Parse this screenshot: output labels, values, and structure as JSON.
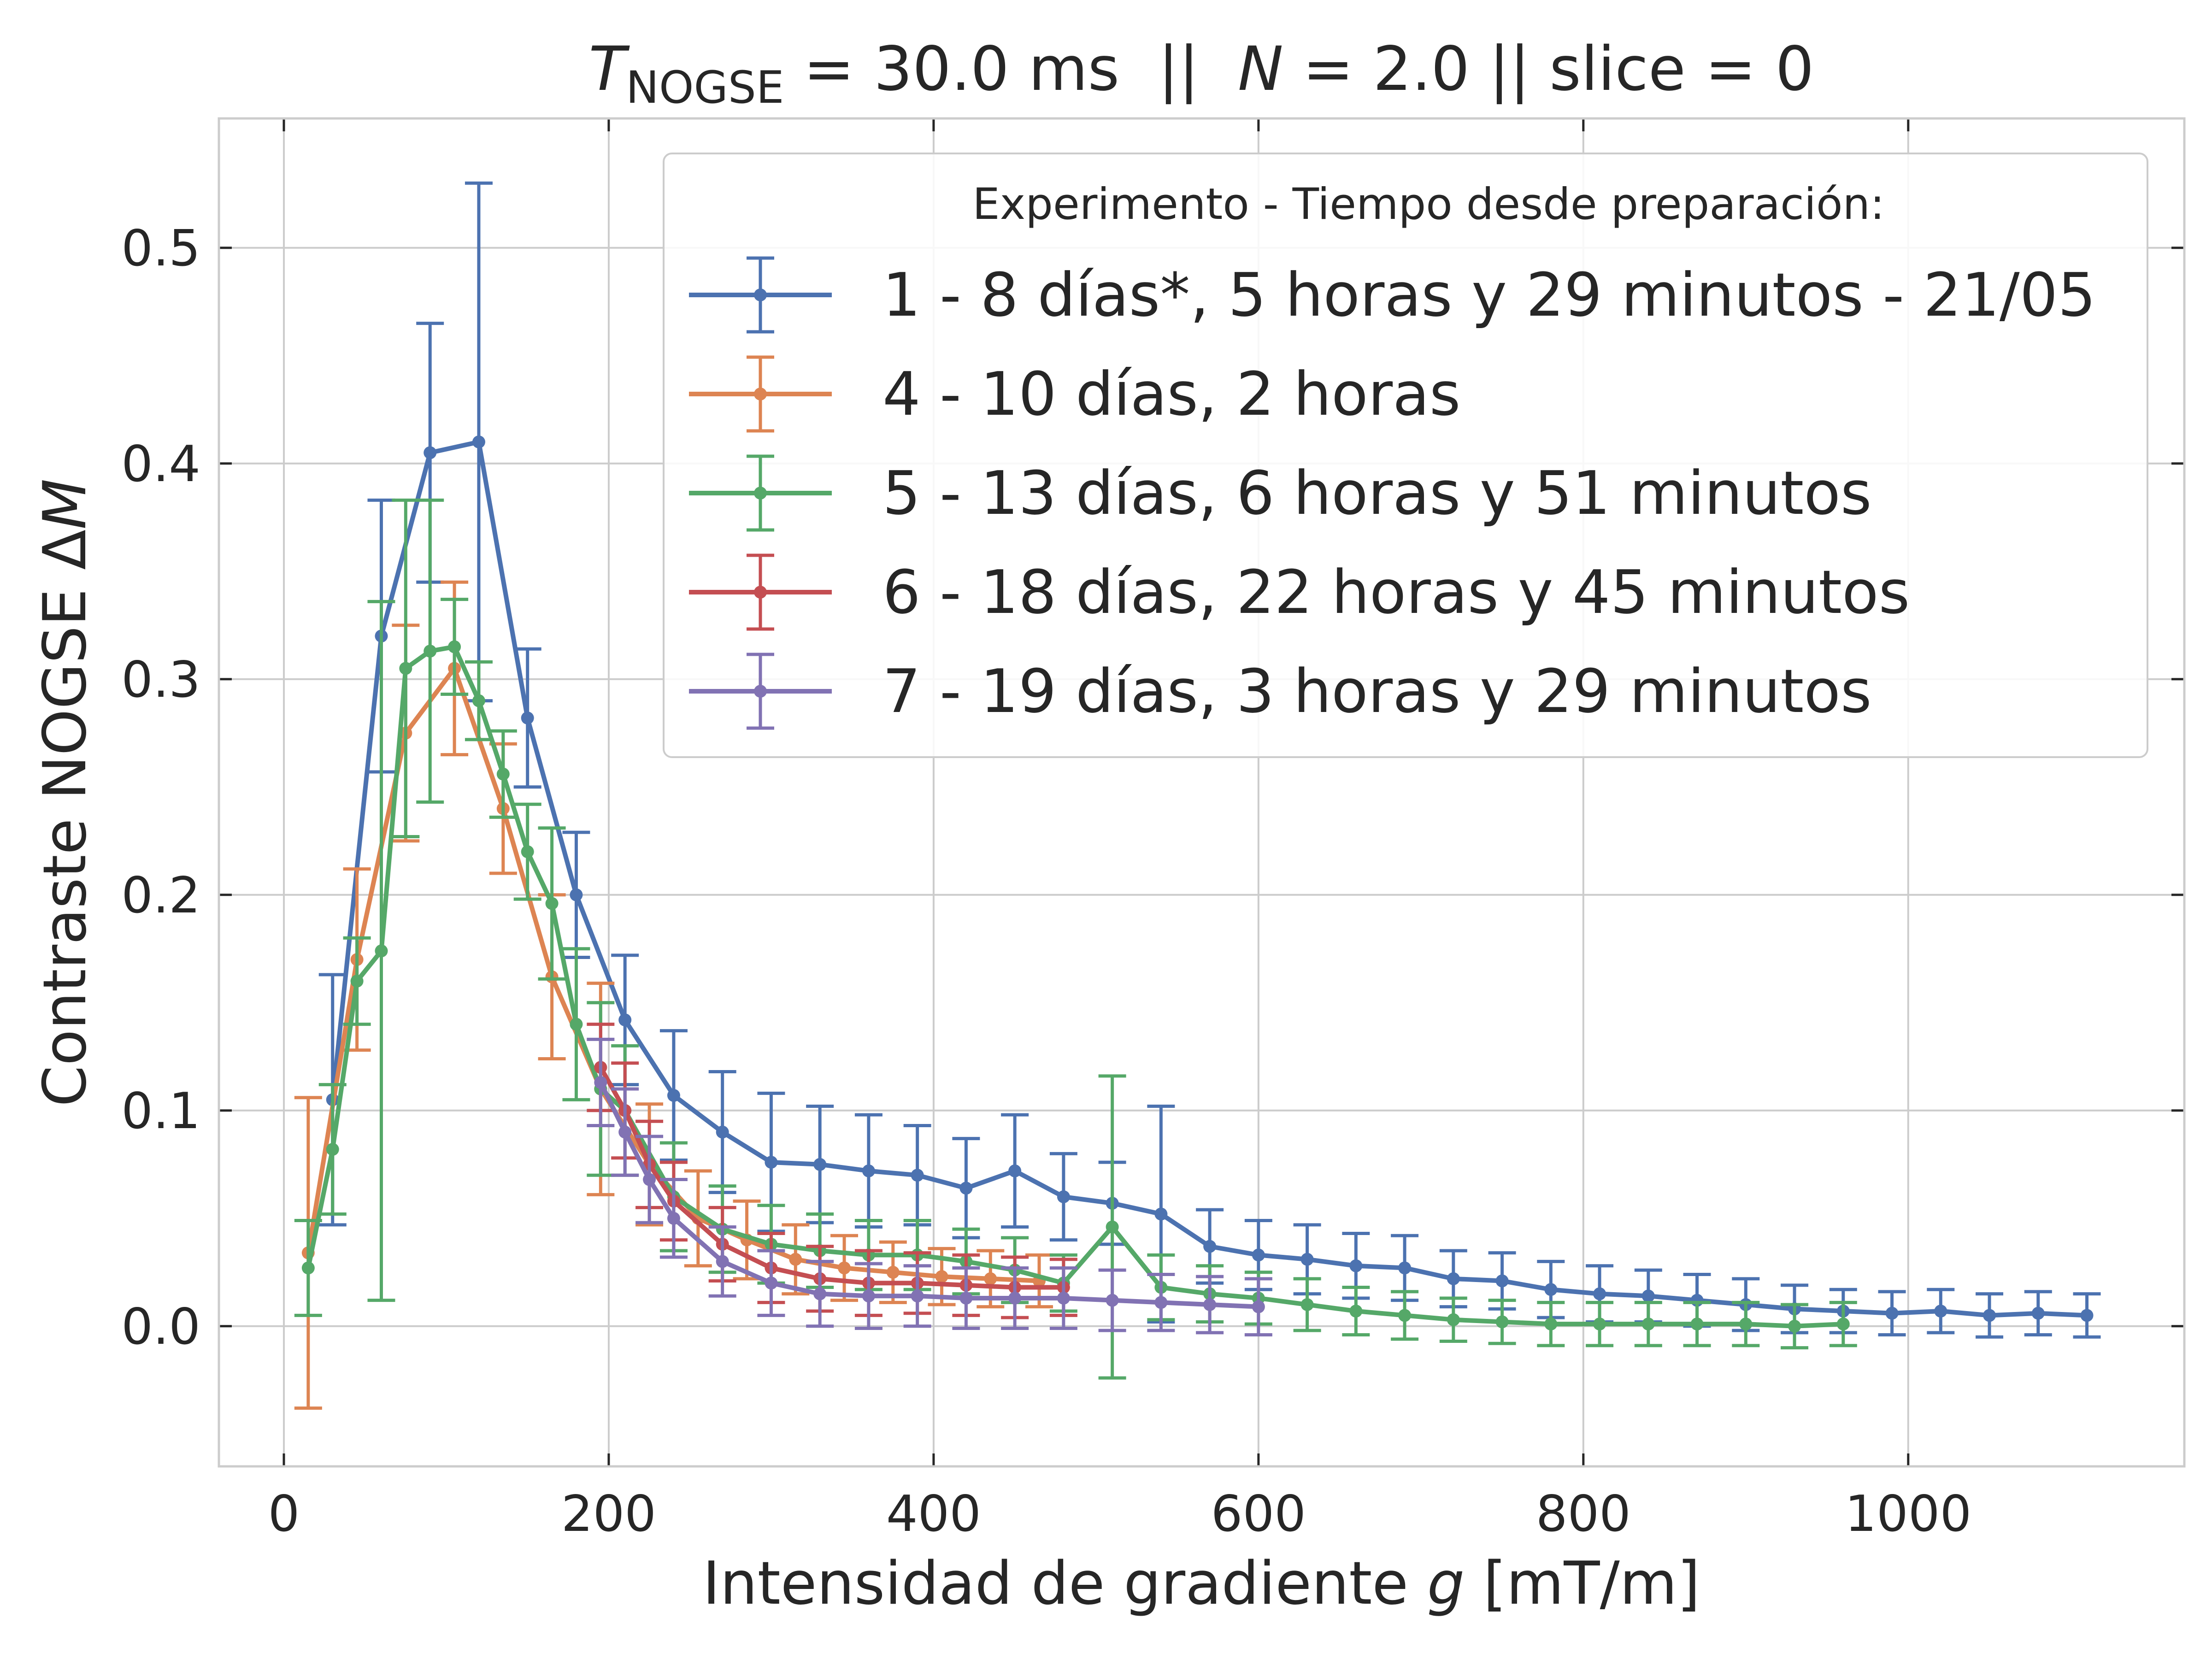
{
  "chart_data": {
    "type": "line",
    "title": {
      "prefix_symbol": "T",
      "prefix_subscript": "NOGSE",
      "rest": " = 30.0 ms  ||  ",
      "n_symbol": "N",
      "n_rest": " = 2.0 || slice = 0"
    },
    "xlabel": {
      "text": "Intensidad de gradiente ",
      "symbol": "g",
      "unit": " [mT/m]"
    },
    "ylabel": {
      "text": "Contraste NOGSE Δ",
      "symbol": "M"
    },
    "xlim": [
      -40,
      1170
    ],
    "ylim": [
      -0.065,
      0.56
    ],
    "xticks": [
      0,
      200,
      400,
      600,
      800,
      1000
    ],
    "xtick_labels": [
      "0",
      "200",
      "400",
      "600",
      "800",
      "1000"
    ],
    "yticks": [
      0.0,
      0.1,
      0.2,
      0.3,
      0.4,
      0.5
    ],
    "ytick_labels": [
      "0.0",
      "0.1",
      "0.2",
      "0.3",
      "0.4",
      "0.5"
    ],
    "grid": true,
    "legend": {
      "title": "Experimento - Tiempo desde preparación:",
      "position": "top-right"
    },
    "series": [
      {
        "name": "1 - 8 días*, 5 horas y 29 minutos - 21/05",
        "color": "#4c72b0",
        "x": [
          30,
          60,
          90,
          120,
          150,
          180,
          210,
          240,
          270,
          300,
          330,
          360,
          390,
          420,
          450,
          480,
          510,
          540,
          570,
          600,
          630,
          660,
          690,
          720,
          750,
          780,
          810,
          840,
          870,
          900,
          930,
          960,
          990,
          1020,
          1050,
          1080,
          1110
        ],
        "y": [
          0.105,
          0.32,
          0.405,
          0.41,
          0.282,
          0.2,
          0.142,
          0.107,
          0.09,
          0.076,
          0.075,
          0.072,
          0.07,
          0.064,
          0.072,
          0.06,
          0.057,
          0.052,
          0.037,
          0.033,
          0.031,
          0.028,
          0.027,
          0.022,
          0.021,
          0.017,
          0.015,
          0.014,
          0.012,
          0.01,
          0.008,
          0.007,
          0.006,
          0.007,
          0.005,
          0.006,
          0.005
        ],
        "err": [
          0.058,
          0.063,
          0.06,
          0.12,
          0.032,
          0.029,
          0.03,
          0.03,
          0.028,
          0.032,
          0.027,
          0.026,
          0.023,
          0.023,
          0.026,
          0.02,
          0.019,
          0.05,
          0.017,
          0.016,
          0.016,
          0.015,
          0.015,
          0.013,
          0.013,
          0.013,
          0.013,
          0.012,
          0.012,
          0.012,
          0.011,
          0.01,
          0.01,
          0.01,
          0.01,
          0.01,
          0.01
        ]
      },
      {
        "name": "4 - 10 días, 2 horas",
        "color": "#dd8452",
        "x": [
          15,
          45,
          75,
          105,
          135,
          165,
          195,
          225,
          255,
          285,
          315,
          345,
          375,
          405,
          435,
          465
        ],
        "y": [
          0.034,
          0.17,
          0.275,
          0.305,
          0.24,
          0.162,
          0.11,
          0.075,
          0.05,
          0.04,
          0.031,
          0.027,
          0.025,
          0.023,
          0.022,
          0.021
        ],
        "err": [
          0.072,
          0.042,
          0.05,
          0.04,
          0.03,
          0.038,
          0.049,
          0.028,
          0.022,
          0.018,
          0.016,
          0.015,
          0.014,
          0.013,
          0.013,
          0.012
        ]
      },
      {
        "name": "5 - 13 días, 6 horas y 51 minutos",
        "color": "#55a868",
        "x": [
          15,
          30,
          45,
          60,
          75,
          90,
          105,
          120,
          135,
          150,
          165,
          180,
          195,
          210,
          240,
          270,
          300,
          330,
          360,
          390,
          420,
          450,
          480,
          510,
          540,
          570,
          600,
          630,
          660,
          690,
          720,
          750,
          780,
          810,
          840,
          870,
          900,
          930,
          960
        ],
        "y": [
          0.027,
          0.082,
          0.16,
          0.174,
          0.305,
          0.313,
          0.315,
          0.29,
          0.256,
          0.22,
          0.196,
          0.14,
          0.11,
          0.1,
          0.06,
          0.045,
          0.038,
          0.035,
          0.033,
          0.033,
          0.03,
          0.026,
          0.02,
          0.046,
          0.018,
          0.015,
          0.013,
          0.01,
          0.007,
          0.005,
          0.003,
          0.002,
          0.001,
          0.001,
          0.001,
          0.001,
          0.001,
          0.0,
          0.001
        ],
        "err": [
          0.022,
          0.03,
          0.02,
          0.162,
          0.078,
          0.07,
          0.022,
          0.018,
          0.02,
          0.022,
          0.035,
          0.035,
          0.04,
          0.03,
          0.025,
          0.02,
          0.018,
          0.017,
          0.016,
          0.016,
          0.015,
          0.015,
          0.013,
          0.07,
          0.015,
          0.013,
          0.012,
          0.012,
          0.011,
          0.011,
          0.01,
          0.01,
          0.01,
          0.01,
          0.01,
          0.01,
          0.01,
          0.01,
          0.01
        ]
      },
      {
        "name": "6 - 18 días, 22 horas y 45 minutos",
        "color": "#c44e52",
        "x": [
          195,
          210,
          225,
          240,
          270,
          300,
          330,
          360,
          390,
          420,
          450,
          480
        ],
        "y": [
          0.12,
          0.1,
          0.075,
          0.058,
          0.038,
          0.027,
          0.022,
          0.02,
          0.02,
          0.019,
          0.018,
          0.018
        ],
        "err": [
          0.02,
          0.022,
          0.02,
          0.018,
          0.017,
          0.016,
          0.015,
          0.015,
          0.014,
          0.014,
          0.014,
          0.013
        ]
      },
      {
        "name": "7 - 19 días, 3 horas y 29 minutos",
        "color": "#8172b3",
        "x": [
          195,
          210,
          225,
          240,
          270,
          300,
          330,
          360,
          390,
          420,
          450,
          480,
          510,
          540,
          570,
          600
        ],
        "y": [
          0.113,
          0.09,
          0.068,
          0.05,
          0.03,
          0.02,
          0.015,
          0.014,
          0.014,
          0.013,
          0.013,
          0.013,
          0.012,
          0.011,
          0.01,
          0.009
        ],
        "err": [
          0.02,
          0.02,
          0.02,
          0.018,
          0.016,
          0.015,
          0.015,
          0.015,
          0.014,
          0.014,
          0.014,
          0.014,
          0.014,
          0.013,
          0.013,
          0.013
        ]
      }
    ]
  }
}
